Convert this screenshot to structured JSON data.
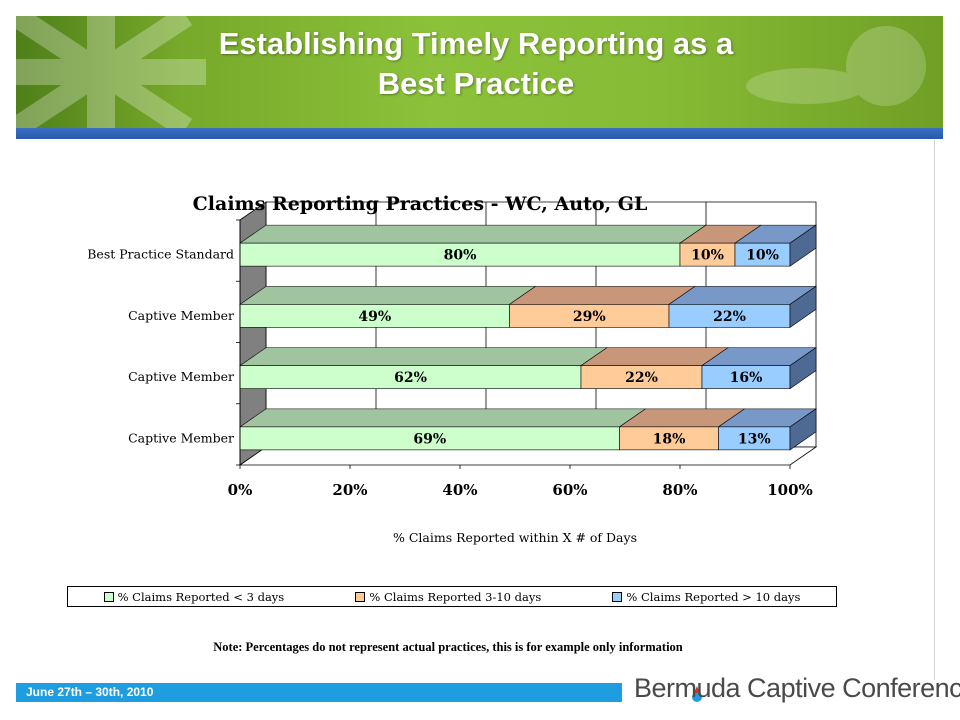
{
  "header": {
    "title_line1": "Establishing Timely Reporting as a",
    "title_line2": "Best Practice"
  },
  "chart_data": {
    "type": "bar",
    "orientation": "horizontal",
    "stacked": true,
    "title": "Claims Reporting Practices - WC, Auto, GL",
    "xlabel": "% Claims Reported within X # of Days",
    "ylabel": "",
    "xlim": [
      0,
      100
    ],
    "x_ticks": [
      "0%",
      "20%",
      "40%",
      "60%",
      "80%",
      "100%"
    ],
    "categories": [
      "Best Practice Standard",
      "Captive Member",
      "Captive Member",
      "Captive Member"
    ],
    "series": [
      {
        "name": "% Claims Reported < 3 days",
        "values": [
          80,
          49,
          62,
          69
        ],
        "labels": [
          "80%",
          "49%",
          "62%",
          "69%"
        ],
        "color": "#ccffcc"
      },
      {
        "name": "% Claims Reported 3-10 days",
        "values": [
          10,
          29,
          22,
          18
        ],
        "labels": [
          "10%",
          "29%",
          "22%",
          "18%"
        ],
        "color": "#ffcc99"
      },
      {
        "name": "% Claims Reported > 10 days",
        "values": [
          10,
          22,
          16,
          13
        ],
        "labels": [
          "10%",
          "22%",
          "16%",
          "13%"
        ],
        "color": "#99ccff"
      }
    ],
    "grid": true,
    "legend_position": "bottom"
  },
  "note": "Note:  Percentages do not represent actual practices, this is for example only information",
  "footer": {
    "date": "June 27th – 30th, 2010",
    "brand": "Bermuda Captive Conference"
  }
}
